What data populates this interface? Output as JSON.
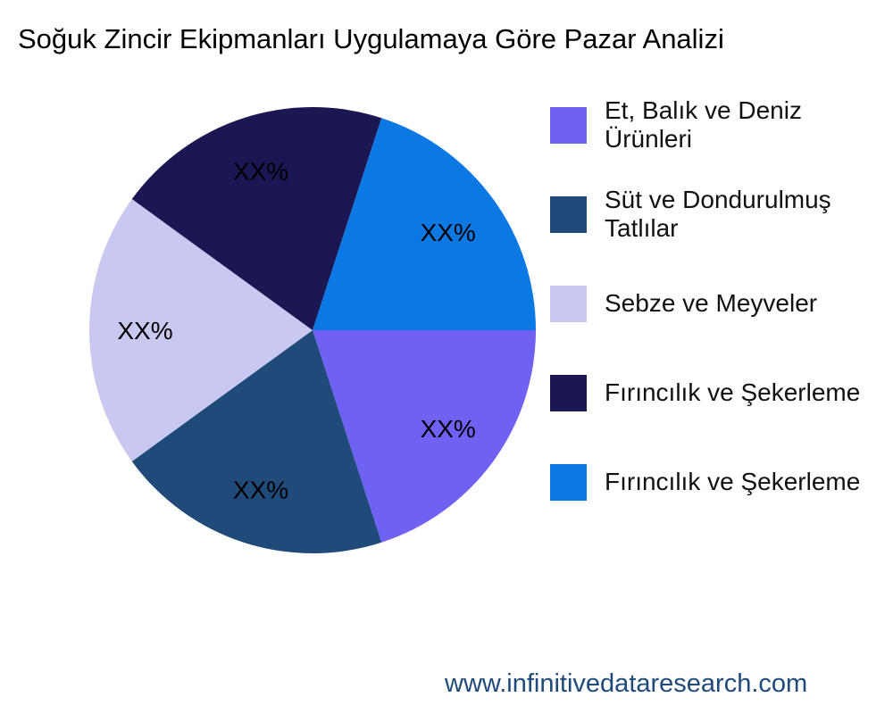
{
  "chart_data": {
    "type": "pie",
    "title": "Soğuk Zincir Ekipmanları Uygulamaya Göre Pazar Analizi",
    "slices": [
      {
        "name": "Et, Balık ve Deniz Ürünleri",
        "value": 20,
        "label": "XX%",
        "color": "#6F61F2"
      },
      {
        "name": "Süt ve Dondurulmuş Tatlılar",
        "value": 20,
        "label": "XX%",
        "color": "#1F4A7A"
      },
      {
        "name": "Sebze ve Meyveler",
        "value": 20,
        "label": "XX%",
        "color": "#C8C8F0"
      },
      {
        "name": "Fırıncılık ve Şekerleme",
        "value": 20,
        "label": "XX%",
        "color": "#1B1753"
      },
      {
        "name": "Fırıncılık ve Şekerleme",
        "value": 20,
        "label": "XX%",
        "color": "#0B78E3"
      }
    ],
    "legend_position": "right"
  },
  "footer": "www.infinitivedataresearch.com"
}
